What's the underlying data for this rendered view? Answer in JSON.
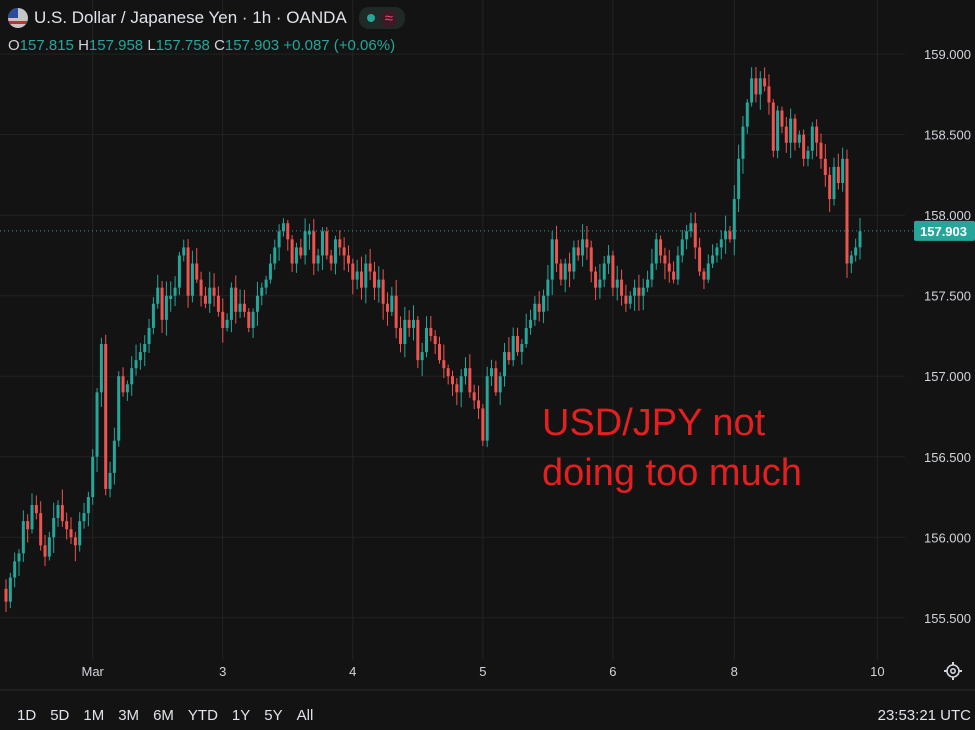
{
  "header": {
    "title": "U.S. Dollar / Japanese Yen · 1h · OANDA",
    "wave_symbol": "≈"
  },
  "ohlc": {
    "o_key": "O",
    "o": "157.815",
    "h_key": "H",
    "h": "157.958",
    "l_key": "L",
    "l": "157.758",
    "c_key": "C",
    "c": "157.903",
    "change": "+0.087 (+0.06%)"
  },
  "annotation": {
    "line1": "USD/JPY not",
    "line2": "doing too much"
  },
  "bottom_bar": {
    "ranges": [
      "1D",
      "5D",
      "1M",
      "3M",
      "6M",
      "YTD",
      "1Y",
      "5Y",
      "All"
    ],
    "clock": "23:53:21 UTC"
  },
  "colors": {
    "up": "#26a69a",
    "down": "#ef5350",
    "annotation": "#e41f1f",
    "background": "#131313"
  },
  "chart_data": {
    "type": "candlestick",
    "ylim": [
      155.3,
      159.15
    ],
    "y_ticks": [
      "159.000",
      "158.500",
      "158.000",
      "157.500",
      "157.000",
      "156.500",
      "156.000",
      "155.500"
    ],
    "y_tick_values": [
      159.0,
      158.5,
      158.0,
      157.5,
      157.0,
      156.5,
      156.0,
      155.5
    ],
    "x_ticks": [
      "Mar",
      "3",
      "4",
      "5",
      "6",
      "8",
      "10"
    ],
    "x_tick_index": [
      20,
      50,
      80,
      110,
      140,
      168,
      201
    ],
    "last_price_label": "157.903",
    "last_price": 157.903,
    "closes": [
      155.6,
      155.75,
      155.85,
      155.9,
      156.1,
      156.05,
      156.2,
      156.15,
      155.95,
      155.88,
      156.0,
      156.12,
      156.2,
      156.1,
      156.05,
      156.0,
      155.95,
      156.1,
      156.15,
      156.25,
      156.5,
      156.9,
      157.2,
      156.3,
      156.4,
      156.6,
      157.0,
      156.9,
      156.95,
      157.05,
      157.1,
      157.15,
      157.2,
      157.3,
      157.45,
      157.55,
      157.35,
      157.5,
      157.5,
      157.55,
      157.75,
      157.8,
      157.5,
      157.7,
      157.6,
      157.5,
      157.45,
      157.55,
      157.5,
      157.4,
      157.3,
      157.35,
      157.55,
      157.4,
      157.45,
      157.4,
      157.3,
      157.4,
      157.5,
      157.55,
      157.6,
      157.7,
      157.8,
      157.9,
      157.95,
      157.85,
      157.7,
      157.8,
      157.75,
      157.9,
      157.9,
      157.7,
      157.75,
      157.9,
      157.75,
      157.7,
      157.85,
      157.8,
      157.75,
      157.7,
      157.6,
      157.65,
      157.55,
      157.7,
      157.65,
      157.55,
      157.6,
      157.45,
      157.4,
      157.5,
      157.3,
      157.2,
      157.35,
      157.3,
      157.35,
      157.1,
      157.15,
      157.3,
      157.25,
      157.2,
      157.1,
      157.05,
      157.0,
      156.95,
      156.9,
      157.0,
      157.05,
      156.9,
      156.85,
      156.8,
      156.6,
      157.0,
      157.05,
      156.9,
      157.0,
      157.15,
      157.1,
      157.25,
      157.15,
      157.2,
      157.3,
      157.35,
      157.45,
      157.4,
      157.5,
      157.6,
      157.85,
      157.7,
      157.6,
      157.7,
      157.65,
      157.8,
      157.75,
      157.85,
      157.8,
      157.65,
      157.55,
      157.6,
      157.7,
      157.75,
      157.55,
      157.6,
      157.5,
      157.45,
      157.5,
      157.55,
      157.5,
      157.55,
      157.6,
      157.7,
      157.85,
      157.75,
      157.7,
      157.65,
      157.6,
      157.75,
      157.85,
      157.9,
      157.95,
      157.8,
      157.65,
      157.6,
      157.7,
      157.75,
      157.8,
      157.85,
      157.9,
      157.85,
      158.1,
      158.35,
      158.55,
      158.7,
      158.85,
      158.75,
      158.85,
      158.8,
      158.7,
      158.4,
      158.65,
      158.55,
      158.45,
      158.6,
      158.45,
      158.5,
      158.35,
      158.4,
      158.55,
      158.45,
      158.35,
      158.25,
      158.1,
      158.3,
      158.2,
      158.35,
      157.7,
      157.75,
      157.8,
      157.9
    ]
  }
}
